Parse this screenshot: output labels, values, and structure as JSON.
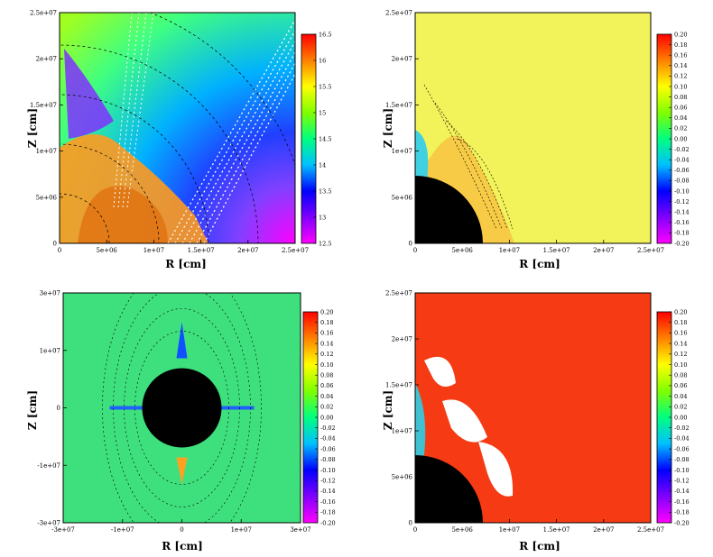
{
  "chart_data": [
    {
      "type": "heatmap",
      "panel": "top-left",
      "xlabel": "R [cm]",
      "ylabel": "Z [cm]",
      "xlim": [
        0,
        25000000
      ],
      "ylim": [
        0,
        25000000
      ],
      "x_ticks": [
        "0",
        "5e+06",
        "1e+07",
        "1.5e+07",
        "2e+07",
        "2.5e+07"
      ],
      "y_ticks": [
        "0",
        "5e+06",
        "1e+07",
        "1.5e+07",
        "2e+07",
        "2.5e+07"
      ],
      "colorbar": {
        "min": 12.5,
        "max": 16.5,
        "ticks": [
          "16.5",
          "16",
          "15.5",
          "15",
          "14.5",
          "14",
          "13.5",
          "13",
          "12.5"
        ],
        "colormap": [
          "#ff00ff",
          "#8000ff",
          "#0000ff",
          "#00c0ff",
          "#00ff80",
          "#80ff00",
          "#ffff00",
          "#ff8000",
          "#ff0000"
        ]
      },
      "overlays": [
        "velocity-vectors",
        "density-contours"
      ],
      "has_central_mask": false
    },
    {
      "type": "heatmap",
      "panel": "top-right",
      "xlabel": "R [cm]",
      "ylabel": "Z [cm]",
      "xlim": [
        0,
        25000000
      ],
      "ylim": [
        0,
        25000000
      ],
      "x_ticks": [
        "0",
        "5e+06",
        "1e+07",
        "1.5e+07",
        "2e+07",
        "2.5e+07"
      ],
      "y_ticks": [
        "0",
        "5e+06",
        "1e+07",
        "1.5e+07",
        "2e+07",
        "2.5e+07"
      ],
      "colorbar": {
        "min": -0.2,
        "max": 0.2,
        "ticks": [
          "0.20",
          "0.18",
          "0.16",
          "0.14",
          "0.12",
          "0.10",
          "0.08",
          "0.06",
          "0.04",
          "0.02",
          "0.00",
          "-0.02",
          "-0.04",
          "-0.06",
          "-0.08",
          "-0.10",
          "-0.12",
          "-0.14",
          "-0.16",
          "-0.18",
          "-0.20"
        ],
        "colormap": [
          "#ff00ff",
          "#8000ff",
          "#0000ff",
          "#00c0ff",
          "#00ff80",
          "#80ff00",
          "#ffff00",
          "#ff8000",
          "#ff0000"
        ]
      },
      "overlays": [
        "contours"
      ],
      "has_central_mask": true
    },
    {
      "type": "heatmap",
      "panel": "bottom-left",
      "xlabel": "R [cm]",
      "ylabel": "Z [cm]",
      "xlim": [
        -30000000,
        30000000
      ],
      "ylim": [
        -30000000,
        30000000
      ],
      "x_ticks": [
        "-3e+07",
        "-1e+07",
        "0",
        "1e+07",
        "3e+07"
      ],
      "y_ticks": [
        "-3e+07",
        "-1e+07",
        "0",
        "1e+07",
        "3e+07"
      ],
      "colorbar": {
        "min": -0.2,
        "max": 0.2,
        "ticks": [
          "0.20",
          "0.18",
          "0.16",
          "0.14",
          "0.12",
          "0.10",
          "0.08",
          "0.06",
          "0.04",
          "0.02",
          "0.00",
          "-0.02",
          "-0.04",
          "-0.06",
          "-0.08",
          "-0.10",
          "-0.12",
          "-0.14",
          "-0.16",
          "-0.18",
          "-0.20"
        ],
        "colormap": [
          "#ff00ff",
          "#8000ff",
          "#0000ff",
          "#00c0ff",
          "#00ff80",
          "#80ff00",
          "#ffff00",
          "#ff8000",
          "#ff0000"
        ]
      },
      "overlays": [
        "contours"
      ],
      "has_central_mask": true
    },
    {
      "type": "heatmap",
      "panel": "bottom-right",
      "xlabel": "R [cm]",
      "ylabel": "Z [cm]",
      "xlim": [
        0,
        25000000
      ],
      "ylim": [
        0,
        25000000
      ],
      "x_ticks": [
        "0",
        "5e+06",
        "1e+07",
        "1.5e+07",
        "2e+07",
        "2.5e+07"
      ],
      "y_ticks": [
        "0",
        "5e+06",
        "1e+07",
        "1.5e+07",
        "2e+07",
        "2.5e+07"
      ],
      "colorbar": {
        "min": -0.2,
        "max": 0.2,
        "ticks": [
          "0.20",
          "0.18",
          "0.16",
          "0.14",
          "0.12",
          "0.10",
          "0.08",
          "0.06",
          "0.04",
          "0.02",
          "0.00",
          "-0.02",
          "-0.04",
          "-0.06",
          "-0.08",
          "-0.10",
          "-0.12",
          "-0.14",
          "-0.16",
          "-0.18",
          "-0.20"
        ],
        "colormap": [
          "#ff00ff",
          "#8000ff",
          "#0000ff",
          "#00c0ff",
          "#00ff80",
          "#80ff00",
          "#ffff00",
          "#ff8000",
          "#ff0000"
        ]
      },
      "overlays": [
        "white-regions"
      ],
      "has_central_mask": true
    }
  ]
}
